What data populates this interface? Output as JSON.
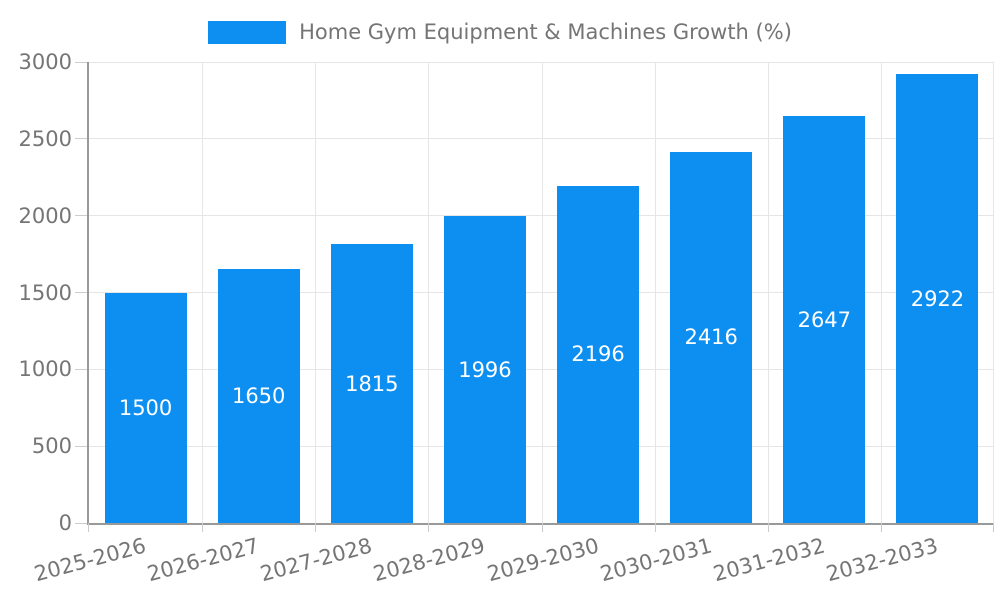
{
  "chart_data": {
    "type": "bar",
    "legend": "Home Gym Equipment & Machines Growth (%)",
    "categories": [
      "2025-2026",
      "2026-2027",
      "2027-2028",
      "2028-2029",
      "2029-2030",
      "2030-2031",
      "2031-2032",
      "2032-2033"
    ],
    "values": [
      1500,
      1650,
      1815,
      1996,
      2196,
      2416,
      2647,
      2922
    ],
    "yticks": [
      0,
      500,
      1000,
      1500,
      2000,
      2500,
      3000
    ],
    "ylim": [
      0,
      3000
    ],
    "xlabel": "",
    "ylabel": "",
    "grid": true,
    "legend_position": "top-center",
    "x_label_rotation_deg": -15,
    "colors": {
      "bar": "#0d8ff2",
      "bar_value_label": "#ffffff",
      "axis_line": "#999999",
      "gridline": "#e6e6e6",
      "tick_label": "#757575",
      "legend_text": "#757575",
      "background": "#ffffff"
    }
  }
}
